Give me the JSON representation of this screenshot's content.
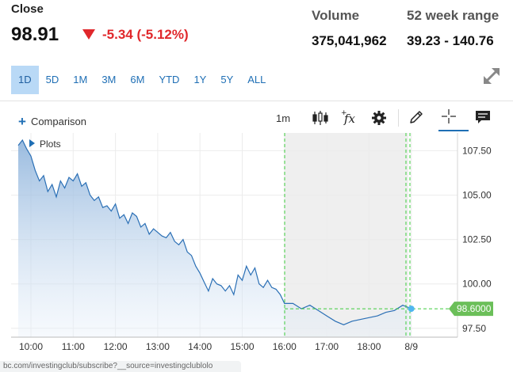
{
  "quote": {
    "close_label": "Close",
    "price": "98.91",
    "change": "-5.34 (-5.12%)",
    "volume_label": "Volume",
    "volume": "375,041,962",
    "range_label": "52 week range",
    "range": "39.23 - 140.76"
  },
  "ranges": [
    "1D",
    "5D",
    "1M",
    "3M",
    "6M",
    "YTD",
    "1Y",
    "5Y",
    "ALL"
  ],
  "active_range": "1D",
  "toolbar": {
    "comparison_label": "Comparison",
    "interval_label": "1m",
    "icons": [
      "candlestick-icon",
      "function-icon",
      "gear-icon",
      "pencil-icon",
      "crosshair-icon",
      "comment-icon"
    ]
  },
  "plots_label": "Plots",
  "chart_data": {
    "type": "area",
    "x_ticks": [
      "10:00",
      "11:00",
      "12:00",
      "13:00",
      "14:00",
      "15:00",
      "16:00",
      "17:00",
      "18:00",
      "8/9"
    ],
    "y_ticks": [
      "107.50",
      "105.00",
      "102.50",
      "100.00",
      "97.50"
    ],
    "ylim": [
      97.0,
      108.5
    ],
    "last_price_label": "98.6000",
    "last_price": 98.6,
    "x": [
      9.7,
      9.8,
      9.9,
      10.0,
      10.1,
      10.2,
      10.3,
      10.4,
      10.5,
      10.6,
      10.7,
      10.8,
      10.9,
      11.0,
      11.1,
      11.2,
      11.3,
      11.4,
      11.5,
      11.6,
      11.7,
      11.8,
      11.9,
      12.0,
      12.1,
      12.2,
      12.3,
      12.4,
      12.5,
      12.6,
      12.7,
      12.8,
      12.9,
      13.0,
      13.1,
      13.2,
      13.3,
      13.4,
      13.5,
      13.6,
      13.7,
      13.8,
      13.9,
      14.0,
      14.1,
      14.2,
      14.3,
      14.4,
      14.5,
      14.6,
      14.7,
      14.8,
      14.9,
      15.0,
      15.1,
      15.2,
      15.3,
      15.4,
      15.5,
      15.6,
      15.7,
      15.8,
      15.9,
      16.0,
      16.2,
      16.4,
      16.6,
      16.8,
      17.0,
      17.2,
      17.4,
      17.6,
      17.8,
      18.0,
      18.2,
      18.4,
      18.6,
      18.8,
      19.0
    ],
    "y": [
      107.8,
      108.1,
      107.6,
      107.2,
      106.4,
      105.8,
      106.1,
      105.2,
      105.6,
      104.9,
      105.8,
      105.4,
      106.0,
      105.8,
      106.2,
      105.5,
      105.7,
      105.0,
      104.7,
      104.9,
      104.3,
      104.4,
      104.1,
      104.5,
      103.7,
      103.9,
      103.4,
      104.0,
      103.8,
      103.2,
      103.4,
      102.8,
      103.1,
      102.9,
      102.7,
      102.6,
      102.9,
      102.4,
      102.2,
      102.5,
      101.8,
      101.6,
      101.0,
      100.6,
      100.1,
      99.6,
      100.3,
      100.0,
      99.9,
      99.6,
      99.9,
      99.4,
      100.5,
      100.2,
      101.0,
      100.5,
      100.9,
      100.0,
      99.8,
      100.2,
      99.8,
      99.7,
      99.4,
      98.9,
      98.9,
      98.6,
      98.8,
      98.5,
      98.2,
      97.9,
      97.7,
      97.9,
      98.0,
      98.1,
      98.2,
      98.4,
      98.5,
      98.8,
      98.6
    ]
  },
  "status_url": "bc.com/investingclub/subscribe?__source=investingclublolo"
}
